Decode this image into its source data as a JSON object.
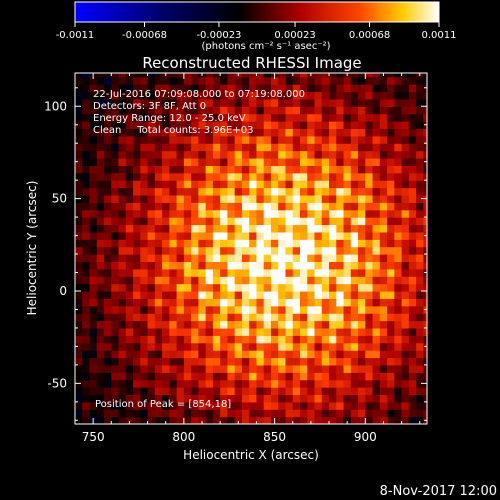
{
  "colorbar": {
    "tick_labels": [
      "-0.0011",
      "-0.00068",
      "-0.00023",
      "0.00023",
      "0.00068",
      "0.0011"
    ],
    "tick_values": [
      -0.0011,
      -0.00068,
      -0.00023,
      0.00023,
      0.00068,
      0.0011
    ],
    "range": [
      -0.0011,
      0.0011
    ],
    "units_label": "(photons cm⁻² s⁻¹ asec⁻²)"
  },
  "chart_data": {
    "type": "heatmap",
    "title": "Reconstructed RHESSI Image",
    "xlabel": "Heliocentric X (arcsec)",
    "ylabel": "Heliocentric Y (arcsec)",
    "xlim": [
      740,
      934
    ],
    "ylim": [
      -72,
      118
    ],
    "x_ticks": [
      750,
      800,
      850,
      900
    ],
    "y_ticks": [
      -50,
      0,
      50,
      100
    ],
    "x_tick_labels": [
      "750",
      "800",
      "850",
      "900"
    ],
    "y_tick_labels": [
      "-50",
      "0",
      "50",
      "100"
    ],
    "annotations": [
      "22-Jul-2016 07:09:08.000 to 07:19:08.000",
      "Detectors: 3F 8F, Att 0",
      "Energy Range: 12.0 - 25.0 keV",
      "Clean     Total counts: 3.96E+03"
    ],
    "peak_label": "Position of Peak = [854,18]",
    "peak": [
      854,
      18
    ],
    "colormap": [
      "#0000ff",
      "#000000",
      "#ff0000",
      "#ffff00",
      "#ffffff"
    ]
  },
  "footer": {
    "timestamp": "8-Nov-2017 12:00"
  }
}
